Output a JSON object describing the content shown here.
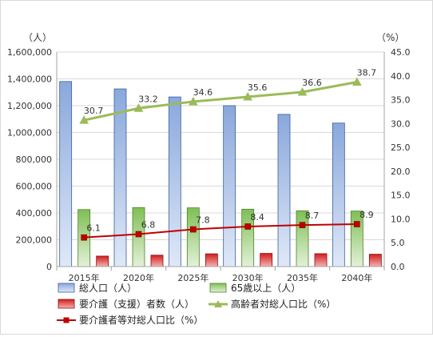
{
  "chart_data": {
    "type": "bar",
    "categories": [
      "2015年",
      "2020年",
      "2025年",
      "2030年",
      "2035年",
      "2040年"
    ],
    "y_left": {
      "unit_label": "（人）",
      "ylim": [
        0,
        1600000
      ],
      "ticks": [
        "0",
        "200,000",
        "400,000",
        "600,000",
        "800,000",
        "1,000,000",
        "1,200,000",
        "1,400,000",
        "1,600,000"
      ]
    },
    "y_right": {
      "unit_label": "（%）",
      "ylim": [
        0,
        45
      ],
      "ticks": [
        "0.0",
        "5.0",
        "10.0",
        "15.0",
        "20.0",
        "25.0",
        "30.0",
        "35.0",
        "40.0",
        "45.0"
      ]
    },
    "bar_series": [
      {
        "name": "総人口（人）",
        "values": [
          1380000,
          1325000,
          1265000,
          1200000,
          1135000,
          1070000
        ],
        "color": "#9fb9e6"
      },
      {
        "name": "65歳以上（人）",
        "values": [
          425000,
          440000,
          438000,
          428000,
          416000,
          414000
        ],
        "color": "#8fc66a"
      },
      {
        "name": "要介護（支援）者数（人）",
        "values": [
          78000,
          85000,
          95000,
          98000,
          96000,
          92000
        ],
        "color": "#e03030"
      }
    ],
    "line_series": [
      {
        "name": "高齢者対総人口比（%）",
        "values": [
          30.7,
          33.2,
          34.6,
          35.6,
          36.6,
          38.7
        ],
        "labels": [
          "30.7",
          "33.2",
          "34.6",
          "35.6",
          "36.6",
          "38.7"
        ],
        "color": "#9bbb59"
      },
      {
        "name": "要介護者等対総人口比（%）",
        "values": [
          6.1,
          6.8,
          7.8,
          8.4,
          8.7,
          8.9
        ],
        "labels": [
          "6.1",
          "6.8",
          "7.8",
          "8.4",
          "8.7",
          "8.9"
        ],
        "color": "#c00000"
      }
    ],
    "grid": true,
    "legend_position": "bottom"
  }
}
